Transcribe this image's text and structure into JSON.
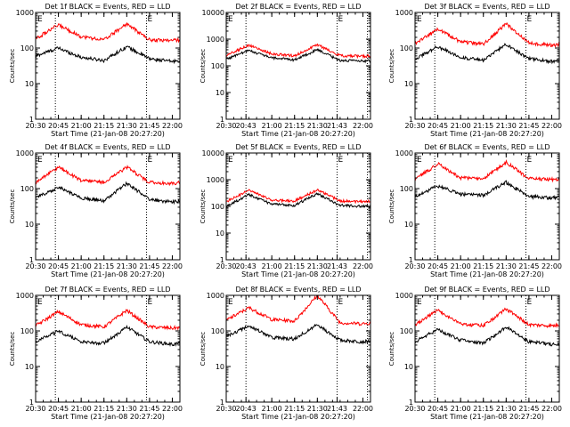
{
  "chart_data": [
    {
      "type": "line",
      "title": "Det 1f BLACK = Events, RED = LLD",
      "xlabel": "Start Time (21-Jan-08 20:27:20)",
      "ylabel": "Counts/sec",
      "xlim": [
        "20:30",
        "22:05"
      ],
      "ylim": [
        1,
        1000
      ],
      "yscale": "log",
      "x_ticks": [
        "20:30",
        "20:45",
        "21:00",
        "21:15",
        "21:30",
        "21:45",
        "22:00"
      ],
      "y_ticks": [
        "1",
        "10",
        "100",
        "1000"
      ],
      "markers": [
        {
          "time": "20:43",
          "label": ""
        },
        {
          "time": "21:43",
          "label": "E"
        }
      ],
      "corner_label": "E",
      "x": [
        "20:30",
        "20:45",
        "21:00",
        "21:15",
        "21:30",
        "21:45",
        "22:00",
        "22:05"
      ],
      "series": [
        {
          "color": "#000000",
          "values": [
            60,
            100,
            55,
            45,
            110,
            50,
            42,
            45
          ]
        },
        {
          "color": "#ff0000",
          "values": [
            180,
            450,
            210,
            170,
            480,
            170,
            165,
            170
          ]
        }
      ]
    },
    {
      "type": "line",
      "title": "Det 2f BLACK = Events, RED = LLD",
      "xlabel": "Start Time (21-Jan-08 20:27:20)",
      "ylabel": "Counts/sec",
      "xlim": [
        "20:30",
        "22:05"
      ],
      "ylim": [
        1,
        10000
      ],
      "yscale": "log",
      "x_ticks": [
        "20:30",
        "20:43",
        "21:00",
        "21:15",
        "21:30",
        "21:43",
        "22:00"
      ],
      "y_ticks": [
        "1",
        "10",
        "100",
        "1000",
        "10000"
      ],
      "markers": [
        {
          "time": "20:43",
          "label": ""
        },
        {
          "time": "21:43",
          "label": "E"
        },
        {
          "time": "22:03",
          "label": ""
        }
      ],
      "corner_label": "E",
      "x": [
        "20:30",
        "20:45",
        "21:00",
        "21:15",
        "21:30",
        "21:45",
        "22:00",
        "22:05"
      ],
      "series": [
        {
          "color": "#000000",
          "values": [
            180,
            380,
            200,
            170,
            400,
            160,
            150,
            155
          ]
        },
        {
          "color": "#ff0000",
          "values": [
            250,
            600,
            280,
            240,
            620,
            240,
            230,
            240
          ]
        }
      ]
    },
    {
      "type": "line",
      "title": "Det 3f BLACK = Events, RED = LLD",
      "xlabel": "Start Time (21-Jan-08 20:27:20)",
      "ylabel": "Counts/sec",
      "xlim": [
        "20:30",
        "22:05"
      ],
      "ylim": [
        1,
        1000
      ],
      "yscale": "log",
      "x_ticks": [
        "20:30",
        "20:45",
        "21:00",
        "21:15",
        "21:30",
        "21:45",
        "22:00"
      ],
      "y_ticks": [
        "1",
        "10",
        "100",
        "1000"
      ],
      "markers": [
        {
          "time": "20:43",
          "label": ""
        },
        {
          "time": "21:43",
          "label": "E"
        }
      ],
      "corner_label": "E",
      "x": [
        "20:30",
        "20:45",
        "21:00",
        "21:15",
        "21:30",
        "21:45",
        "22:00",
        "22:05"
      ],
      "series": [
        {
          "color": "#000000",
          "values": [
            50,
            110,
            55,
            45,
            130,
            50,
            42,
            45
          ]
        },
        {
          "color": "#ff0000",
          "values": [
            130,
            350,
            150,
            130,
            480,
            140,
            120,
            125
          ]
        }
      ]
    },
    {
      "type": "line",
      "title": "Det 4f BLACK = Events, RED = LLD",
      "xlabel": "Start Time (21-Jan-08 20:27:20)",
      "ylabel": "Counts/sec",
      "xlim": [
        "20:30",
        "22:05"
      ],
      "ylim": [
        1,
        1000
      ],
      "yscale": "log",
      "x_ticks": [
        "20:30",
        "20:45",
        "21:00",
        "21:15",
        "21:30",
        "21:45",
        "22:00"
      ],
      "y_ticks": [
        "1",
        "10",
        "100",
        "1000"
      ],
      "markers": [
        {
          "time": "20:43",
          "label": ""
        },
        {
          "time": "21:43",
          "label": "E"
        }
      ],
      "corner_label": "E",
      "x": [
        "20:30",
        "20:45",
        "21:00",
        "21:15",
        "21:30",
        "21:45",
        "22:00",
        "22:05"
      ],
      "series": [
        {
          "color": "#000000",
          "values": [
            55,
            110,
            55,
            45,
            140,
            50,
            42,
            45
          ]
        },
        {
          "color": "#ff0000",
          "values": [
            150,
            400,
            170,
            150,
            400,
            150,
            140,
            150
          ]
        }
      ]
    },
    {
      "type": "line",
      "title": "Det 5f BLACK = Events, RED = LLD",
      "xlabel": "Start Time (21-Jan-08 20:27:20)",
      "ylabel": "Counts/sec",
      "xlim": [
        "20:30",
        "22:05"
      ],
      "ylim": [
        1,
        10000
      ],
      "yscale": "log",
      "x_ticks": [
        "20:30",
        "20:43",
        "21:00",
        "21:15",
        "21:30",
        "21:43",
        "22:00"
      ],
      "y_ticks": [
        "1",
        "10",
        "100",
        "1000",
        "10000"
      ],
      "markers": [
        {
          "time": "20:43",
          "label": ""
        },
        {
          "time": "21:43",
          "label": "E"
        },
        {
          "time": "22:03",
          "label": ""
        }
      ],
      "corner_label": "E",
      "x": [
        "20:30",
        "20:45",
        "21:00",
        "21:15",
        "21:30",
        "21:45",
        "22:00",
        "22:05"
      ],
      "series": [
        {
          "color": "#000000",
          "values": [
            100,
            280,
            120,
            110,
            300,
            110,
            100,
            105
          ]
        },
        {
          "color": "#ff0000",
          "values": [
            150,
            400,
            170,
            160,
            420,
            160,
            150,
            155
          ]
        }
      ]
    },
    {
      "type": "line",
      "title": "Det 6f BLACK = Events, RED = LLD",
      "xlabel": "Start Time (21-Jan-08 20:27:20)",
      "ylabel": "Counts/sec",
      "xlim": [
        "20:30",
        "22:05"
      ],
      "ylim": [
        1,
        1000
      ],
      "yscale": "log",
      "x_ticks": [
        "20:30",
        "20:45",
        "21:00",
        "21:15",
        "21:30",
        "21:45",
        "22:00"
      ],
      "y_ticks": [
        "1",
        "10",
        "100",
        "1000"
      ],
      "markers": [
        {
          "time": "20:43",
          "label": ""
        },
        {
          "time": "21:43",
          "label": "E"
        }
      ],
      "corner_label": "E",
      "x": [
        "20:30",
        "20:45",
        "21:00",
        "21:15",
        "21:30",
        "21:45",
        "22:00",
        "22:05"
      ],
      "series": [
        {
          "color": "#000000",
          "values": [
            60,
            120,
            70,
            65,
            150,
            60,
            55,
            58
          ]
        },
        {
          "color": "#ff0000",
          "values": [
            180,
            500,
            200,
            190,
            550,
            190,
            180,
            185
          ]
        }
      ]
    },
    {
      "type": "line",
      "title": "Det 7f BLACK = Events, RED = LLD",
      "xlabel": "Start Time (21-Jan-08 20:27:20)",
      "ylabel": "Counts/sec",
      "xlim": [
        "20:30",
        "22:05"
      ],
      "ylim": [
        1,
        1000
      ],
      "yscale": "log",
      "x_ticks": [
        "20:30",
        "20:45",
        "21:00",
        "21:15",
        "21:30",
        "21:45",
        "22:00"
      ],
      "y_ticks": [
        "1",
        "10",
        "100",
        "1000"
      ],
      "markers": [
        {
          "time": "20:43",
          "label": ""
        },
        {
          "time": "21:43",
          "label": "E"
        }
      ],
      "corner_label": "E",
      "x": [
        "20:30",
        "20:45",
        "21:00",
        "21:15",
        "21:30",
        "21:45",
        "22:00",
        "22:05"
      ],
      "series": [
        {
          "color": "#000000",
          "values": [
            50,
            100,
            50,
            45,
            130,
            50,
            42,
            45
          ]
        },
        {
          "color": "#ff0000",
          "values": [
            140,
            350,
            150,
            130,
            380,
            130,
            120,
            125
          ]
        }
      ]
    },
    {
      "type": "line",
      "title": "Det 8f BLACK = Events, RED = LLD",
      "xlabel": "Start Time (21-Jan-08 20:27:20)",
      "ylabel": "Counts/sec",
      "xlim": [
        "20:30",
        "22:05"
      ],
      "ylim": [
        1,
        1000
      ],
      "yscale": "log",
      "x_ticks": [
        "20:30",
        "20:43",
        "21:00",
        "21:15",
        "21:30",
        "21:43",
        "22:00"
      ],
      "y_ticks": [
        "1",
        "10",
        "100",
        "1000"
      ],
      "markers": [
        {
          "time": "20:43",
          "label": ""
        },
        {
          "time": "21:43",
          "label": "E"
        },
        {
          "time": "22:03",
          "label": ""
        }
      ],
      "corner_label": "E",
      "x": [
        "20:30",
        "20:45",
        "21:00",
        "21:15",
        "21:30",
        "21:45",
        "22:00",
        "22:05"
      ],
      "series": [
        {
          "color": "#000000",
          "values": [
            70,
            140,
            65,
            60,
            150,
            55,
            50,
            52
          ]
        },
        {
          "color": "#ff0000",
          "values": [
            200,
            450,
            210,
            190,
            1000,
            170,
            160,
            165
          ]
        }
      ]
    },
    {
      "type": "line",
      "title": "Det 9f BLACK = Events, RED = LLD",
      "xlabel": "Start Time (21-Jan-08 20:27:20)",
      "ylabel": "Counts/sec",
      "xlim": [
        "20:30",
        "22:05"
      ],
      "ylim": [
        1,
        1000
      ],
      "yscale": "log",
      "x_ticks": [
        "20:30",
        "20:45",
        "21:00",
        "21:15",
        "21:30",
        "21:45",
        "22:00"
      ],
      "y_ticks": [
        "1",
        "10",
        "100",
        "1000"
      ],
      "markers": [
        {
          "time": "20:43",
          "label": ""
        },
        {
          "time": "21:43",
          "label": "E"
        }
      ],
      "corner_label": "E",
      "x": [
        "20:30",
        "20:45",
        "21:00",
        "21:15",
        "21:30",
        "21:45",
        "22:00",
        "22:05"
      ],
      "series": [
        {
          "color": "#000000",
          "values": [
            50,
            110,
            55,
            45,
            130,
            50,
            42,
            45
          ]
        },
        {
          "color": "#ff0000",
          "values": [
            150,
            380,
            160,
            140,
            420,
            150,
            140,
            145
          ]
        }
      ]
    }
  ]
}
